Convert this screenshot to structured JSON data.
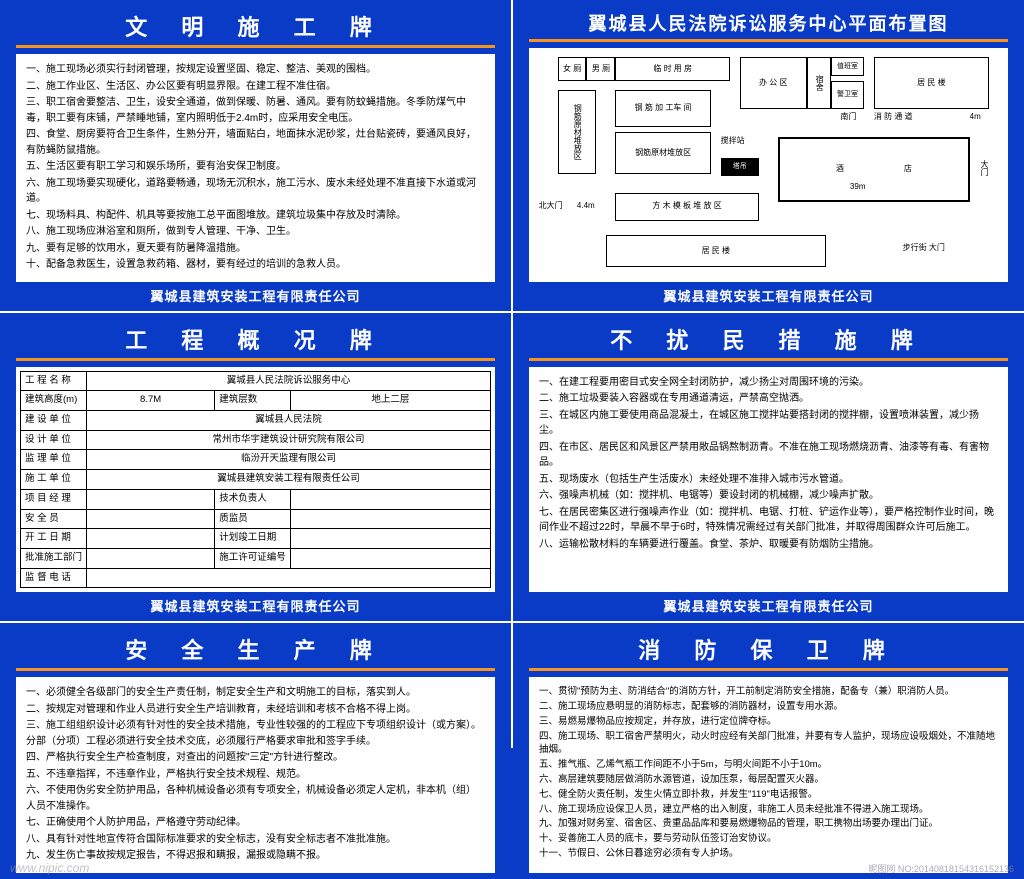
{
  "colors": {
    "bg": "#0a3bc7",
    "accent": "#f7941d",
    "text": "#ffffff"
  },
  "footer": "翼城县建筑安装工程有限责任公司",
  "panels": {
    "civilized": {
      "title": "文 明 施 工 牌",
      "items": [
        "一、施工现场必须实行封闭管理，按规定设置坚固、稳定、整洁、美观的围档。",
        "二、施工作业区、生活区、办公区要有明显界限。在建工程不准住宿。",
        "三、职工宿舍要整洁、卫生，设安全通道，做到保暖、防暑、通风。要有防蚊蝇措施。冬季防煤气中毒，职工要有床铺，严禁睡地铺，室内照明低于2.4m时，应采用安全电压。",
        "四、食堂、厨房要符合卫生条件，生熟分开，墙面贴白，地面抹水泥砂浆，灶台贴瓷砖，要通风良好，有防蝇防鼠措施。",
        "五、生活区要有职工学习和娱乐场所，要有治安保卫制度。",
        "六、施工现场要实现硬化，道路要畅通，现场无沉积水，施工污水、废水未经处理不准直接下水道或河道。",
        "七、现场料具、构配件、机具等要按施工总平面图堆放。建筑垃圾集中存放及时清除。",
        "八、施工现场应淋浴室和厕所，做到专人管理、干净、卫生。",
        "九、要有足够的饮用水，夏天要有防暑降温措施。",
        "十、配备急救医生，设置急救药箱、器材，要有经过的培训的急救人员。"
      ]
    },
    "floorplan": {
      "title": "翼城县人民法院诉讼服务中心平面布置图",
      "labels": {
        "wc_f": "女 厕",
        "wc_m": "男 厕",
        "temp": "临 时 用 房",
        "office": "办 公 区",
        "dorm": "宿舍",
        "duty": "值班室",
        "res": "居 民 楼",
        "guard": "警卫室",
        "rebar_store": "钢筋原材堆放区",
        "rebar_work": "钢 筋 加 工车 间",
        "rebar_store2": "钢筋原材堆放区",
        "mix": "搅拌站",
        "hotel": "酒",
        "shop": "店",
        "wood": "方 木 模 板 堆 放 区",
        "res2": "居 民 楼",
        "tower": "塔吊",
        "ngate": "北大门",
        "sgate": "南门",
        "fire": "消 防 通 道",
        "walk": "步行街 大门",
        "main_gate": "大门",
        "d44": "4.4m",
        "d39": "39m",
        "d4": "4m"
      }
    },
    "overview": {
      "title": "工 程 概 况 牌",
      "rows": [
        [
          "工 程 名 称",
          "翼城县人民法院诉讼服务中心",
          "",
          ""
        ],
        [
          "建筑高度(m)",
          "8.7M",
          "建筑层数",
          "地上二层"
        ],
        [
          "建 设 单 位",
          "翼城县人民法院",
          "",
          ""
        ],
        [
          "设 计 单 位",
          "常州市华宇建筑设计研究院有限公司",
          "",
          ""
        ],
        [
          "监 理 单 位",
          "临汾开天监理有限公司",
          "",
          ""
        ],
        [
          "施 工 单 位",
          "翼城县建筑安装工程有限责任公司",
          "",
          ""
        ],
        [
          "项 目 经 理",
          "",
          "技术负责人",
          ""
        ],
        [
          "安  全  员",
          "",
          "质监员",
          ""
        ],
        [
          "开 工 日 期",
          "",
          "计划竣工日期",
          ""
        ],
        [
          "批准施工部门",
          "",
          "施工许可证编号",
          ""
        ],
        [
          "监 督 电 话",
          "",
          "",
          ""
        ]
      ]
    },
    "disturb": {
      "title": "不 扰 民 措 施 牌",
      "items": [
        "一、在建工程要用密目式安全网全封闭防护，减少扬尘对周围环境的污染。",
        "二、施工垃圾要装入容器或在专用通道清运，严禁高空抛洒。",
        "三、在城区内施工要使用商品混凝土，在城区施工搅拌站要搭封闭的搅拌棚，设置喷淋装置，减少扬尘。",
        "四、在市区、居民区和风景区严禁用敞品锅熬制沥青。不准在施工现场燃烧沥青、油漆等有毒、有害物品。",
        "五、现场废水（包括生产生活废水）未经处理不准排入城市污水管道。",
        "六、强噪声机械（如：搅拌机、电锯等）要设封闭的机械棚，减少噪声扩散。",
        "七、在居民密集区进行强噪声作业（如：搅拌机、电锯、打桩、铲运作业等），要严格控制作业时间，晚间作业不超过22时，早晨不早于6时，特殊情况需经过有关部门批准，并取得周围群众许可后施工。",
        "八、运输松散材料的车辆要进行覆盖。食堂、茶炉、取暖要有防烟防尘措施。"
      ]
    },
    "safety": {
      "title": "安 全 生 产 牌",
      "items": [
        "一、必须健全各级部门的安全生产责任制，制定安全生产和文明施工的目标，落实到人。",
        "二、按规定对管理和作业人员进行安全生产培训教育，未经培训和考核不合格不得上岗。",
        "三、施工组组织设计必须有针对性的安全技术措施，专业性较强的的工程应下专项组织设计（或方案）。分部（分项）工程必须进行安全技术交底，必须履行严格要求审批和签字手续。",
        "四、严格执行安全生产检查制度，对查出的问题按\"三定\"方针进行整改。",
        "五、不违章指挥，不违章作业，严格执行安全技术规程、规范。",
        "六、不使用伪劣安全防护用品，各种机械设备必须有专项安全，机械设备必须定人定机，非本机（组）人员不准操作。",
        "七、正确使用个人防护用品，严格遵守劳动纪律。",
        "八、具有针对性地宣传符合国际标准要求的安全标志，没有安全标志者不准批准施。",
        "九、发生伤亡事故按规定报告，不得迟报和瞒报，漏报或隐瞒不报。"
      ]
    },
    "fire": {
      "title": "消 防 保 卫 牌",
      "items": [
        "一、贯彻\"预防为主、防消结合\"的消防方针，开工前制定消防安全措施，配备专（兼）职消防人员。",
        "二、施工现场应悬明显的消防标志，配套够的消防器材，设置专用水源。",
        "三、易燃易爆物品应按规定，并存放，进行定位牌夺标。",
        "四、施工现场、职工宿舍严禁明火，动火时应经有关部门批准，并要有专人监护，现场应设吸烟处，不准随地抽烟。",
        "五、推气瓶、乙烯气瓶工作间距不小于5m，与明火间距不小于10m。",
        "六、高层建筑要随层做消防水源管道，设加压泵，每层配置灭火器。",
        "七、健全防火责任制，发生火情立即扑救，并发生\"119\"电话报警。",
        "八、施工现场应设保卫人员，建立严格的出入制度，非施工人员未经批准不得进入施工现场。",
        "九、加强对财务室、宿舍区、贵重品品库和要易燃爆物品的管理，职工携物出场要办理出门证。",
        "十、妥善施工人员的底卡，要与劳动队伍签订治安协议。",
        "十一、节假日、公休日暮途穷必须有专人护场。"
      ]
    }
  },
  "watermark": "www.nipic.com",
  "wm_right": "昵图网 NO:20140818154316152136"
}
